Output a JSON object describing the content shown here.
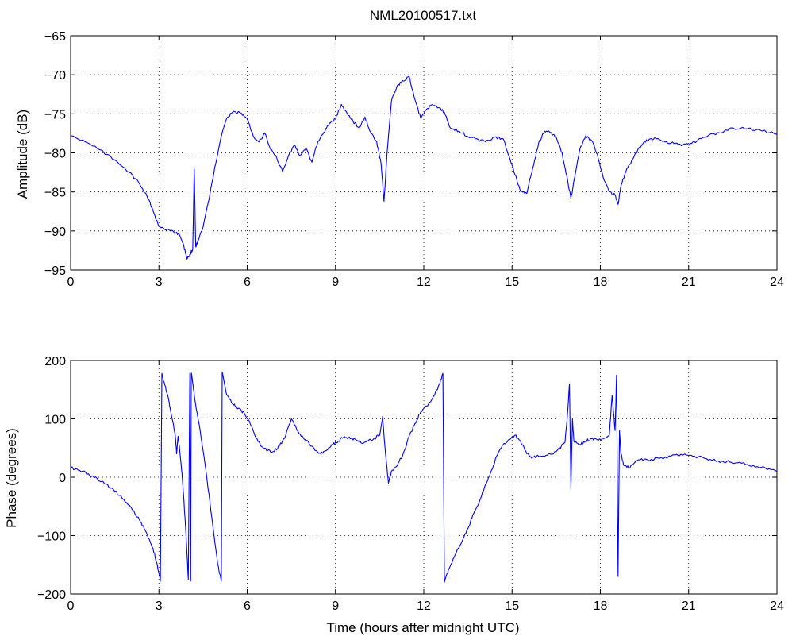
{
  "figure_title": "NML20100517.txt",
  "style": {
    "series_color": "#0000ff",
    "axes_color": "#000000",
    "background": "#ffffff"
  },
  "chart_data": [
    {
      "type": "line",
      "title": "NML20100517.txt",
      "xlabel": "",
      "ylabel": "Amplitude (dB)",
      "xlim": [
        0,
        24
      ],
      "ylim": [
        -95,
        -65
      ],
      "xticks": [
        0,
        3,
        6,
        9,
        12,
        15,
        18,
        21,
        24
      ],
      "yticks": [
        -95,
        -90,
        -85,
        -80,
        -75,
        -70,
        -65
      ],
      "grid": true,
      "series": [
        {
          "x": [
            0,
            0.5,
            1.0,
            1.5,
            2.0,
            2.3,
            2.6,
            2.8,
            3.0,
            3.2,
            3.5,
            3.7,
            3.85,
            3.95,
            4.05,
            4.15,
            4.2,
            4.25,
            4.3,
            4.5,
            4.7,
            4.9,
            5.1,
            5.3,
            5.5,
            5.8,
            6.0,
            6.2,
            6.4,
            6.6,
            6.8,
            7.0,
            7.2,
            7.4,
            7.6,
            7.8,
            8.0,
            8.2,
            8.4,
            8.6,
            8.8,
            9.0,
            9.2,
            9.4,
            9.6,
            9.8,
            10.0,
            10.2,
            10.4,
            10.55,
            10.65,
            10.75,
            10.9,
            11.1,
            11.3,
            11.5,
            11.7,
            11.9,
            12.1,
            12.3,
            12.5,
            12.7,
            12.9,
            13.2,
            13.5,
            13.8,
            14.1,
            14.4,
            14.7,
            14.9,
            15.1,
            15.3,
            15.5,
            15.7,
            15.9,
            16.1,
            16.3,
            16.5,
            16.7,
            16.9,
            17.0,
            17.1,
            17.3,
            17.5,
            17.7,
            17.9,
            18.1,
            18.3,
            18.5,
            18.6,
            18.7,
            18.9,
            19.1,
            19.3,
            19.5,
            19.7,
            19.9,
            20.2,
            20.5,
            20.8,
            21.1,
            21.5,
            22.0,
            22.5,
            23.0,
            23.5,
            24.0
          ],
          "y": [
            -77.8,
            -78.6,
            -79.6,
            -80.9,
            -82.5,
            -83.7,
            -85.6,
            -87.4,
            -89.4,
            -89.8,
            -90.1,
            -90.5,
            -92.0,
            -93.6,
            -93.0,
            -92.3,
            -82.1,
            -92.0,
            -91.5,
            -89.5,
            -86.0,
            -81.8,
            -78.2,
            -75.6,
            -74.8,
            -74.9,
            -75.6,
            -77.8,
            -78.6,
            -77.5,
            -79.6,
            -80.6,
            -82.4,
            -80.4,
            -79.0,
            -80.4,
            -79.4,
            -81.2,
            -78.6,
            -77.4,
            -76.2,
            -75.6,
            -73.8,
            -75.0,
            -76.0,
            -76.8,
            -75.4,
            -77.4,
            -78.6,
            -81.4,
            -86.2,
            -80.2,
            -73.4,
            -71.4,
            -70.8,
            -70.2,
            -73.2,
            -75.6,
            -74.4,
            -73.8,
            -74.2,
            -74.8,
            -76.8,
            -77.2,
            -77.9,
            -78.2,
            -78.6,
            -78.0,
            -78.2,
            -80.4,
            -82.8,
            -85.0,
            -85.2,
            -82.0,
            -78.8,
            -77.2,
            -77.4,
            -78.0,
            -80.0,
            -83.8,
            -85.8,
            -83.6,
            -79.6,
            -77.8,
            -78.4,
            -80.2,
            -83.2,
            -85.0,
            -85.4,
            -86.6,
            -84.2,
            -82.0,
            -80.8,
            -79.4,
            -78.6,
            -78.2,
            -78.2,
            -78.6,
            -78.8,
            -79.0,
            -78.8,
            -78.0,
            -77.4,
            -76.8,
            -76.9,
            -77.2,
            -77.6
          ]
        }
      ]
    },
    {
      "type": "line",
      "title": "",
      "xlabel": "Time (hours after midnight UTC)",
      "ylabel": "Phase (degrees)",
      "xlim": [
        0,
        24
      ],
      "ylim": [
        -200,
        200
      ],
      "xticks": [
        0,
        3,
        6,
        9,
        12,
        15,
        18,
        21,
        24
      ],
      "yticks": [
        -200,
        -100,
        0,
        100,
        200
      ],
      "grid": true,
      "series": [
        {
          "x": [
            0,
            0.3,
            0.6,
            0.9,
            1.2,
            1.5,
            1.8,
            2.1,
            2.4,
            2.6,
            2.8,
            2.95,
            3.05,
            3.1,
            3.12,
            3.2,
            3.35,
            3.45,
            3.55,
            3.6,
            3.65,
            3.7,
            3.8,
            3.9,
            4.0,
            4.05,
            4.08,
            4.1,
            4.13,
            4.2,
            4.4,
            4.6,
            4.8,
            5.0,
            5.12,
            5.15,
            5.3,
            5.5,
            5.7,
            5.9,
            6.1,
            6.3,
            6.5,
            6.7,
            6.9,
            7.1,
            7.3,
            7.5,
            7.7,
            7.9,
            8.1,
            8.3,
            8.5,
            8.7,
            8.9,
            9.1,
            9.3,
            9.5,
            9.7,
            9.9,
            10.1,
            10.3,
            10.5,
            10.6,
            10.7,
            10.8,
            10.9,
            11.1,
            11.3,
            11.5,
            11.7,
            11.9,
            12.1,
            12.3,
            12.5,
            12.65,
            12.7,
            12.72,
            12.9,
            13.1,
            13.3,
            13.5,
            13.7,
            13.9,
            14.1,
            14.3,
            14.5,
            14.7,
            14.9,
            15.1,
            15.3,
            15.5,
            15.7,
            15.9,
            16.2,
            16.5,
            16.8,
            16.9,
            16.95,
            17.0,
            17.05,
            17.1,
            17.3,
            17.5,
            17.7,
            17.9,
            18.1,
            18.3,
            18.4,
            18.5,
            18.55,
            18.6,
            18.65,
            18.7,
            18.8,
            19.0,
            19.3,
            19.6,
            20.0,
            20.4,
            20.8,
            21.2,
            21.6,
            22.0,
            22.4,
            22.8,
            23.2,
            23.6,
            24.0
          ],
          "y": [
            16,
            12,
            6,
            -2,
            -12,
            -24,
            -38,
            -56,
            -78,
            -98,
            -122,
            -152,
            -178,
            178,
            172,
            158,
            128,
            100,
            75,
            40,
            70,
            50,
            -5,
            -80,
            -175,
            178,
            -178,
            178,
            170,
            140,
            80,
            10,
            -70,
            -150,
            -178,
            180,
            142,
            126,
            118,
            110,
            92,
            68,
            52,
            46,
            44,
            54,
            70,
            100,
            80,
            68,
            58,
            46,
            40,
            46,
            56,
            62,
            70,
            66,
            64,
            58,
            62,
            66,
            72,
            104,
            40,
            -10,
            10,
            20,
            40,
            70,
            92,
            112,
            122,
            136,
            156,
            178,
            -178,
            -176,
            -152,
            -130,
            -110,
            -88,
            -62,
            -40,
            -12,
            12,
            38,
            56,
            64,
            72,
            60,
            40,
            34,
            36,
            38,
            44,
            60,
            120,
            160,
            -20,
            100,
            62,
            56,
            62,
            66,
            64,
            66,
            70,
            140,
            80,
            175,
            -170,
            80,
            40,
            20,
            16,
            30,
            30,
            32,
            36,
            38,
            36,
            32,
            28,
            26,
            24,
            20,
            16,
            10
          ]
        }
      ]
    }
  ]
}
